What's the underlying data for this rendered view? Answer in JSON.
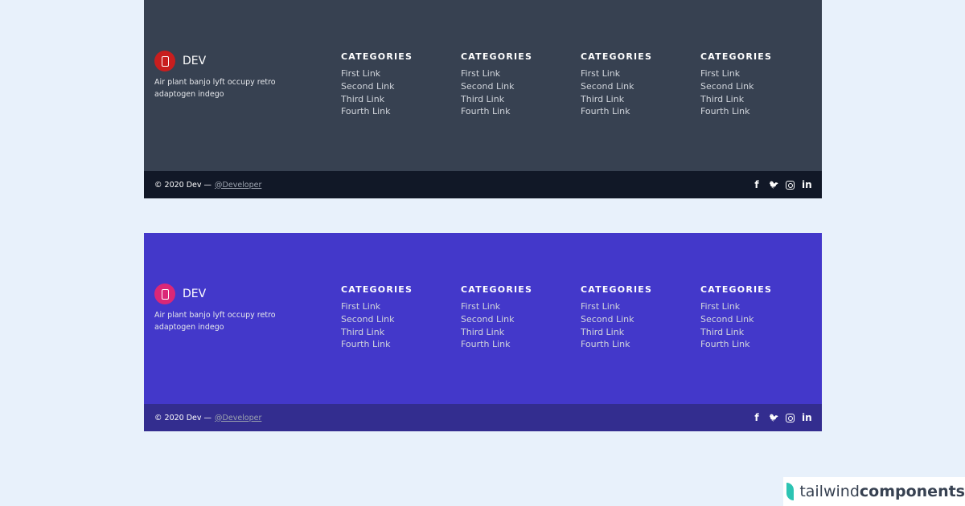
{
  "colors": {
    "dark_main": "#374151",
    "dark_bar": "#111827",
    "dark_logo": "#c81e1e",
    "indigo_main": "#4338ca",
    "indigo_bar": "#332d8f",
    "indigo_logo": "#db2777"
  },
  "footers": [
    {
      "brand": "DEV",
      "logo_icon": "tablet-icon",
      "description": "Air plant banjo lyft occupy retro adaptogen indego",
      "columns": [
        {
          "title": "CATEGORIES",
          "links": [
            "First Link",
            "Second Link",
            "Third Link",
            "Fourth Link"
          ]
        },
        {
          "title": "CATEGORIES",
          "links": [
            "First Link",
            "Second Link",
            "Third Link",
            "Fourth Link"
          ]
        },
        {
          "title": "CATEGORIES",
          "links": [
            "First Link",
            "Second Link",
            "Third Link",
            "Fourth Link"
          ]
        },
        {
          "title": "CATEGORIES",
          "links": [
            "First Link",
            "Second Link",
            "Third Link",
            "Fourth Link"
          ]
        }
      ],
      "copyright": "© 2020 Dev —",
      "handle": "@Developer",
      "social": [
        "facebook",
        "twitter",
        "instagram",
        "linkedin"
      ]
    },
    {
      "brand": "DEV",
      "logo_icon": "tablet-icon",
      "description": "Air plant banjo lyft occupy retro adaptogen indego",
      "columns": [
        {
          "title": "CATEGORIES",
          "links": [
            "First Link",
            "Second Link",
            "Third Link",
            "Fourth Link"
          ]
        },
        {
          "title": "CATEGORIES",
          "links": [
            "First Link",
            "Second Link",
            "Third Link",
            "Fourth Link"
          ]
        },
        {
          "title": "CATEGORIES",
          "links": [
            "First Link",
            "Second Link",
            "Third Link",
            "Fourth Link"
          ]
        },
        {
          "title": "CATEGORIES",
          "links": [
            "First Link",
            "Second Link",
            "Third Link",
            "Fourth Link"
          ]
        }
      ],
      "copyright": "© 2020 Dev —",
      "handle": "@Developer",
      "social": [
        "facebook",
        "twitter",
        "instagram",
        "linkedin"
      ]
    }
  ],
  "watermark": {
    "light": "tailwind",
    "bold": "components"
  }
}
